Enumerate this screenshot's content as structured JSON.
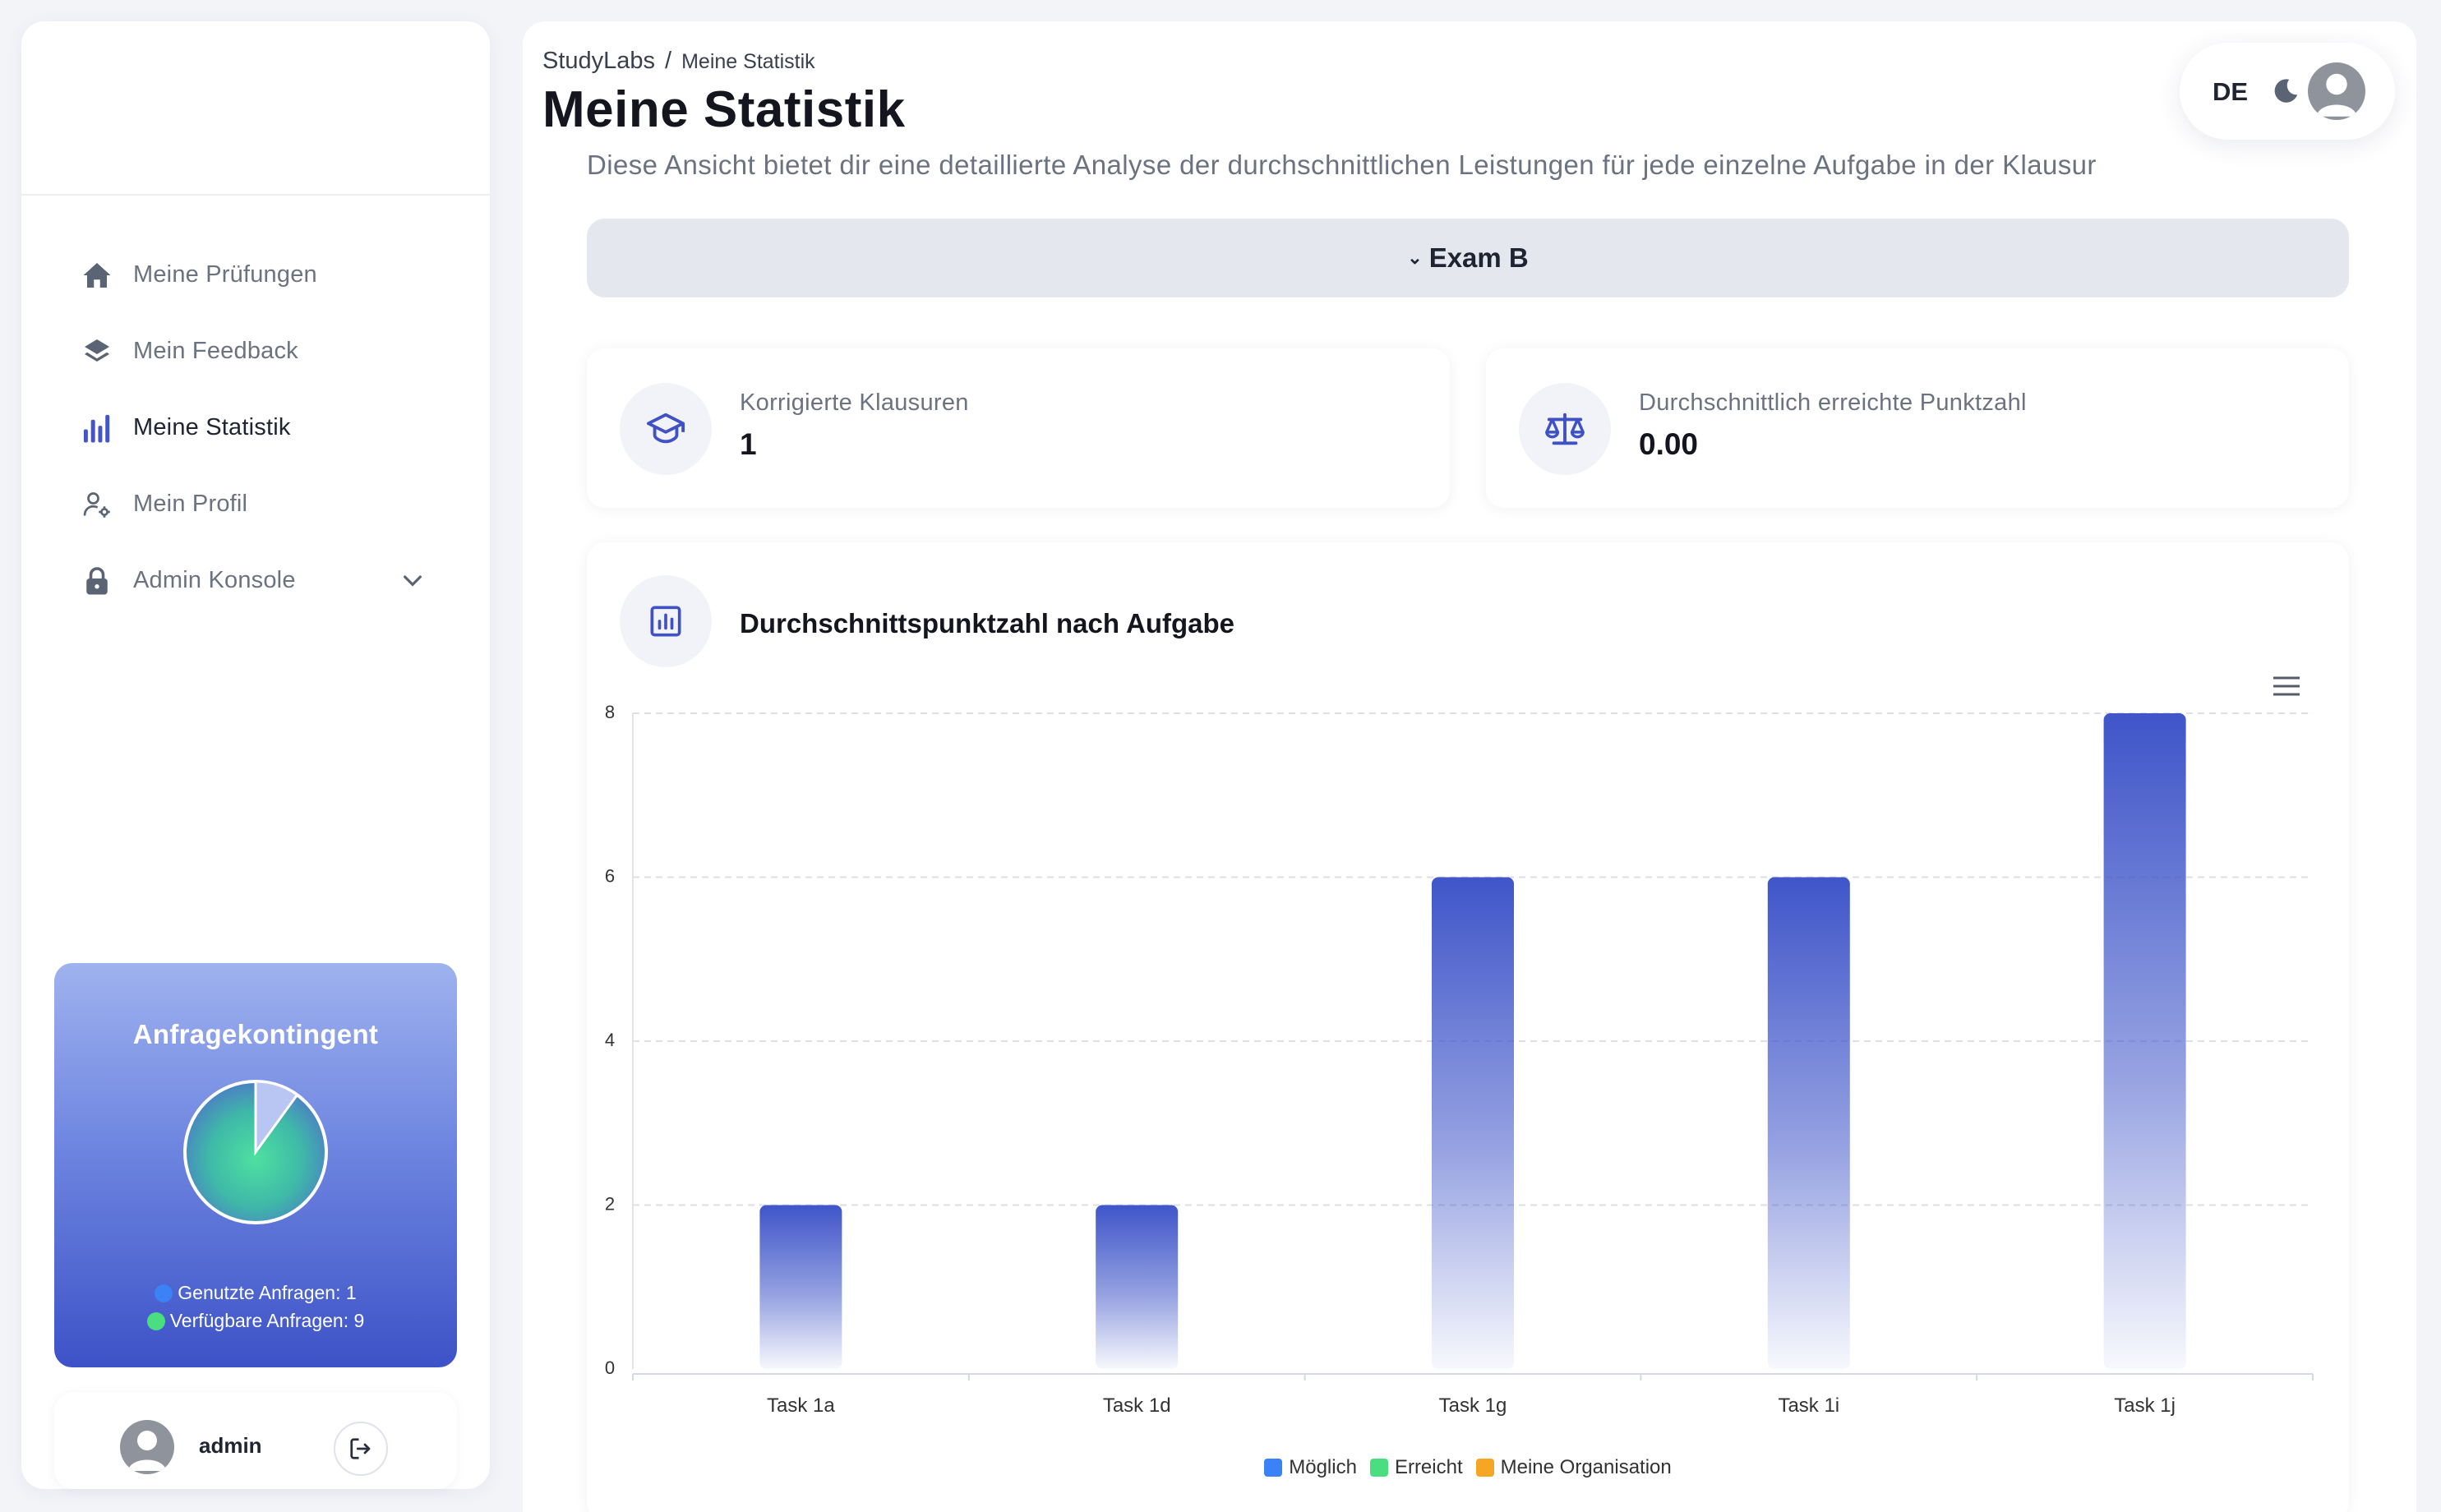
{
  "sidebar": {
    "items": [
      {
        "label": "Meine Prüfungen",
        "icon": "home-icon"
      },
      {
        "label": "Mein Feedback",
        "icon": "layers-icon"
      },
      {
        "label": "Meine Statistik",
        "icon": "bar-chart-icon",
        "active": true
      },
      {
        "label": "Mein Profil",
        "icon": "user-settings-icon"
      },
      {
        "label": "Admin Konsole",
        "icon": "lock-icon",
        "expandable": true
      }
    ],
    "quota": {
      "title": "Anfragekontingent",
      "used_label": "Genutzte Anfragen: 1",
      "available_label": "Verfügbare Anfragen: 9",
      "used": 1,
      "available": 9,
      "used_color": "#3b82f6",
      "available_color": "#4ade80"
    },
    "user": {
      "name": "admin"
    }
  },
  "header": {
    "breadcrumb_root": "StudyLabs",
    "breadcrumb_sep": "/",
    "breadcrumb_current": "Meine Statistik",
    "title": "Meine Statistik",
    "description": "Diese Ansicht bietet dir eine detaillierte Analyse der durchschnittlichen Leistungen für jede einzelne Aufgabe in der Klausur"
  },
  "topbar": {
    "language": "DE",
    "theme_icon": "moon-icon"
  },
  "exam_select": {
    "caret": "⌄",
    "value": "Exam B"
  },
  "stats": [
    {
      "label": "Korrigierte Klausuren",
      "value": "1",
      "icon": "graduation-cap-icon"
    },
    {
      "label": "Durchschnittlich erreichte Punktzahl",
      "value": "0.00",
      "icon": "scale-icon"
    }
  ],
  "chart_card": {
    "title": "Durchschnittspunktzahl nach Aufgabe"
  },
  "chart_data": {
    "type": "bar",
    "title": "",
    "categories": [
      "Task 1a",
      "Task 1d",
      "Task 1g",
      "Task 1i",
      "Task 1j"
    ],
    "series": [
      {
        "name": "Möglich",
        "values": [
          2,
          2,
          6,
          6,
          8
        ],
        "color": "#3b82f6"
      },
      {
        "name": "Erreicht",
        "values": [
          0,
          0,
          0,
          0,
          0
        ],
        "color": "#4ade80"
      },
      {
        "name": "Meine Organisation",
        "values": [
          0,
          0,
          0,
          0,
          0
        ],
        "color": "#f5a623"
      }
    ],
    "bar_color": "#3f55c9",
    "yticks": [
      "0",
      "2",
      "4",
      "6",
      "8"
    ],
    "ylim": [
      0,
      8
    ],
    "xlabel": "",
    "ylabel": "",
    "grid": true,
    "legend": "bottom-center"
  }
}
